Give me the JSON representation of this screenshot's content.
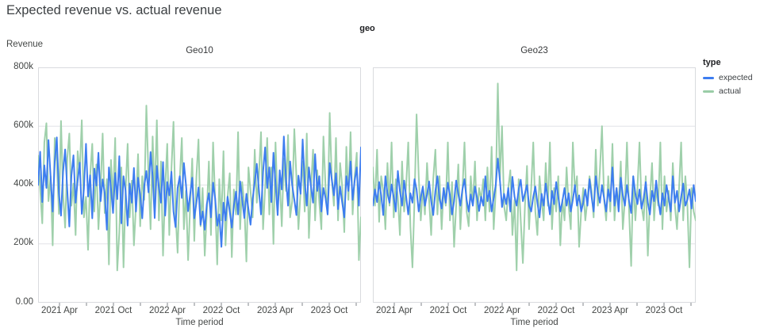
{
  "page": {
    "title": "Expected revenue vs. actual revenue"
  },
  "legend": {
    "title": "type",
    "items": [
      {
        "label": "expected",
        "color": "#3d7df0"
      },
      {
        "label": "actual",
        "color": "#9acda7"
      }
    ]
  },
  "chart_data": {
    "type": "line",
    "title": "Expected revenue vs. actual revenue",
    "facet_field": "geo",
    "x": {
      "label": "Time period",
      "range": "Jan 2021 - Dec 2023",
      "interval": "weekly",
      "tick_labels": [
        "2021 Apr",
        "2021 Oct",
        "2022 Apr",
        "2022 Oct",
        "2023 Apr",
        "2023 Oct"
      ]
    },
    "y": {
      "label": "Revenue",
      "min": 0,
      "max_k": 800,
      "grid_k": [
        200,
        400,
        600
      ],
      "tick_labels": [
        "800k",
        "600k",
        "400k",
        "200k",
        "0.00"
      ]
    },
    "values_unit": "thousands (k) of revenue, estimated from pixels",
    "facets": [
      {
        "name": "Geo10",
        "series": [
          {
            "name": "expected",
            "color": "#3d7df0",
            "opacity": 1,
            "values_k": [
              400,
              513,
              342,
              467,
              390,
              553,
              428,
              310,
              480,
              562,
              371,
              296,
              445,
              521,
              383,
              259,
              432,
              501,
              340,
              415,
              476,
              302,
              388,
              540,
              361,
              433,
              287,
              456,
              398,
              510,
              345,
              419,
              372,
              248,
              460,
              389,
              305,
              441,
              352,
              498,
              270,
              430,
              381,
              262,
              405,
              340,
              458,
              310,
              425,
              366,
              287,
              398,
              448,
              375,
              512,
              430,
              288,
              465,
              391,
              340,
              478,
              296,
              410,
              365,
              445,
              310,
              257,
              390,
              430,
              356,
              475,
              402,
              311,
              368,
              425,
              287,
              340,
              392,
              265,
              310,
              248,
              335,
              372,
              290,
              408,
              355,
              262,
              300,
              190,
              340,
              280,
              360,
              310,
              255,
              330,
              378,
              300,
              412,
              350,
              288,
              370,
              318,
              265,
              352,
              410,
              472,
              385,
              300,
              445,
              528,
              390,
              460,
              342,
              510,
              405,
              298,
              450,
              385,
              565,
              420,
              330,
              480,
              400,
              350,
              298,
              432,
              370,
              555,
              410,
              330,
              460,
              395,
              340,
              505,
              380,
              430,
              310,
              390,
              355,
              300,
              475,
              420,
              365,
              440,
              318,
              395,
              340,
              290,
              430,
              380,
              480,
              350,
              415,
              460,
              330,
              528
            ]
          },
          {
            "name": "actual",
            "color": "#9acda7",
            "opacity": 0.95,
            "values_k": [
              500,
              388,
              270,
              545,
              610,
              345,
              430,
              195,
              560,
              480,
              302,
              618,
              370,
              255,
              490,
              575,
              330,
              405,
              230,
              515,
              445,
              620,
              290,
              360,
              180,
              430,
              540,
              310,
              470,
              250,
              390,
              575,
              305,
              420,
              130,
              485,
              350,
              560,
              110,
              240,
              460,
              120,
              380,
              540,
              290,
              415,
              195,
              330,
              505,
              260,
              430,
              350,
              670,
              430,
              250,
              565,
              350,
              620,
              280,
              480,
              160,
              390,
              540,
              230,
              455,
              615,
              300,
              170,
              420,
              560,
              250,
              380,
              145,
              330,
              490,
              210,
              430,
              555,
              260,
              390,
              160,
              310,
              480,
              230,
              545,
              350,
              130,
              420,
              280,
              515,
              195,
              360,
              440,
              155,
              385,
              300,
              580,
              250,
              410,
              330,
              140,
              460,
              380,
              290,
              520,
              340,
              430,
              580,
              250,
              390,
              560,
              300,
              460,
              200,
              545,
              330,
              415,
              260,
              490,
              380,
              570,
              290,
              345,
              590,
              430,
              250,
              380,
              480,
              310,
              575,
              220,
              390,
              520,
              280,
              450,
              340,
              250,
              565,
              390,
              300,
              645,
              420,
              330,
              560,
              280,
              475,
              395,
              240,
              530,
              350,
              580,
              300,
              430,
              510,
              145,
              290
            ]
          }
        ]
      },
      {
        "name": "Geo23",
        "series": [
          {
            "name": "expected",
            "color": "#3d7df0",
            "opacity": 1,
            "values_k": [
              330,
              385,
              342,
              410,
              365,
              298,
              430,
              372,
              340,
              402,
              358,
              310,
              448,
              380,
              330,
              415,
              360,
              300,
              372,
              340,
              420,
              385,
              310,
              358,
              395,
              330,
              368,
              412,
              345,
              298,
              380,
              430,
              355,
              320,
              390,
              340,
              408,
              365,
              300,
              345,
              415,
              370,
              330,
              385,
              420,
              350,
              310,
              368,
              330,
              395,
              358,
              312,
              360,
              330,
              430,
              345,
              380,
              310,
              355,
              400,
              490,
              415,
              325,
              370,
              335,
              390,
              310,
              428,
              360,
              330,
              385,
              418,
              345,
              372,
              400,
              330,
              310,
              360,
              395,
              340,
              290,
              370,
              330,
              405,
              350,
              300,
              380,
              335,
              410,
              360,
              310,
              345,
              390,
              330,
              372,
              310,
              350,
              400,
              330,
              365,
              310,
              340,
              385,
              330,
              420,
              360,
              310,
              430,
              375,
              340,
              400,
              355,
              310,
              385,
              345,
              460,
              330,
              390,
              310,
              425,
              365,
              330,
              400,
              345,
              305,
              430,
              370,
              335,
              385,
              320,
              355,
              410,
              340,
              300,
              380,
              345,
              415,
              350,
              300,
              372,
              330,
              400,
              355,
              310,
              430,
              340,
              380,
              310,
              360,
              405,
              330,
              350,
              385,
              320,
              400,
              345
            ]
          },
          {
            "name": "actual",
            "color": "#9acda7",
            "opacity": 0.95,
            "values_k": [
              460,
              330,
              520,
              275,
              430,
              380,
              250,
              475,
              330,
              545,
              290,
              420,
              360,
              230,
              480,
              310,
              400,
              545,
              260,
              120,
              350,
              640,
              430,
              280,
              390,
              300,
              475,
              350,
              230,
              420,
              520,
              300,
              430,
              250,
              390,
              330,
              545,
              280,
              410,
              190,
              330,
              470,
              250,
              380,
              545,
              310,
              260,
              430,
              330,
              480,
              280,
              390,
              350,
              420,
              280,
              460,
              310,
              530,
              250,
              380,
              745,
              420,
              600,
              330,
              280,
              390,
              450,
              230,
              350,
              110,
              420,
              280,
              135,
              330,
              465,
              250,
              390,
              545,
              310,
              230,
              430,
              350,
              280,
              475,
              330,
              545,
              250,
              390,
              310,
              430,
              195,
              350,
              280,
              460,
              330,
              250,
              545,
              380,
              430,
              190,
              310,
              390,
              280,
              350,
              430,
              380,
              290,
              520,
              330,
              450,
              600,
              350,
              280,
              430,
              310,
              540,
              280,
              390,
              330,
              480,
              250,
              350,
              545,
              310,
              125,
              430,
              280,
              390,
              545,
              330,
              280,
              430,
              160,
              350,
              475,
              280,
              390,
              330,
              545,
              250,
              430,
              310,
              380,
              280,
              475,
              330,
              250,
              390,
              545,
              280,
              430,
              330,
              120,
              390,
              310,
              280
            ]
          }
        ]
      }
    ]
  }
}
